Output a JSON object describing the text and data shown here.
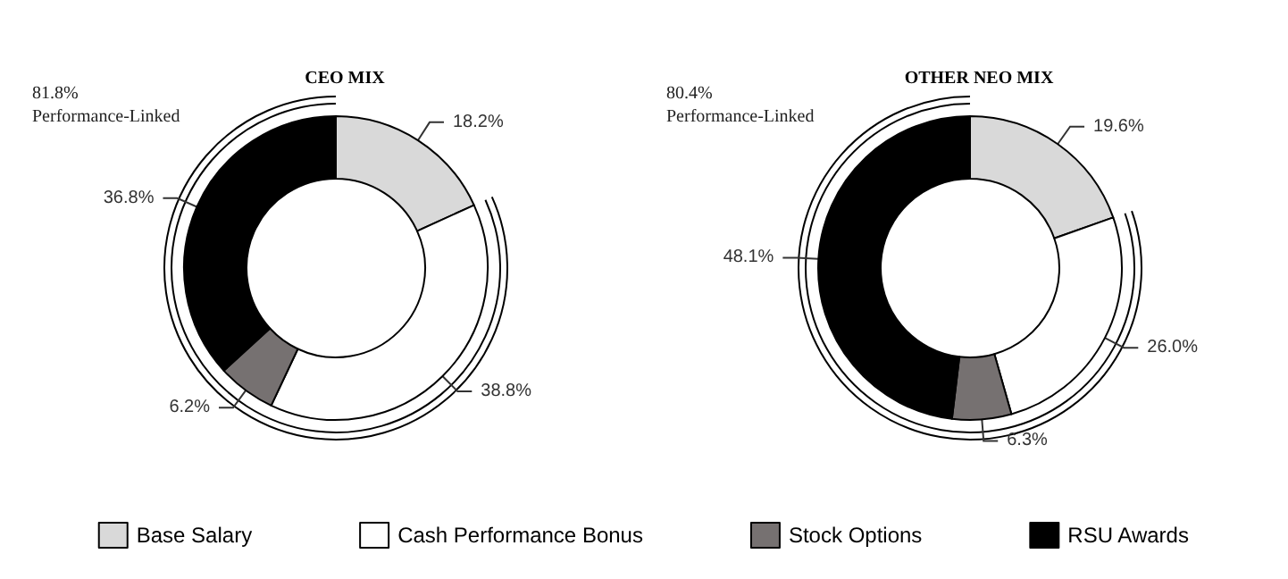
{
  "chart_data": [
    {
      "type": "donut",
      "title": "CEO MIX",
      "categories": [
        "Base Salary",
        "Cash Performance Bonus",
        "Stock Options",
        "RSU Awards"
      ],
      "values": [
        18.2,
        38.8,
        6.2,
        36.8
      ],
      "value_labels": [
        "18.2%",
        "38.8%",
        "6.2%",
        "36.8%"
      ],
      "colors": [
        "#d9d9d9",
        "#ffffff",
        "#767171",
        "#000000"
      ],
      "annotations": [
        "81.8%\nPerformance-Linked"
      ],
      "legend": "bottom"
    },
    {
      "type": "donut",
      "title": "OTHER NEO MIX",
      "categories": [
        null,
        null,
        null,
        null
      ],
      "values": [
        19.6,
        26.0,
        6.3,
        48.1
      ],
      "value_labels": [
        "19.6%",
        "26.0%",
        "6.3%",
        "48.1%"
      ],
      "colors": [
        "#d9d9d9",
        "#ffffff",
        "#767171",
        "#000000"
      ],
      "annotations": [
        "80.4%\nPerformance-Linked"
      ],
      "legend": false
    }
  ]
}
